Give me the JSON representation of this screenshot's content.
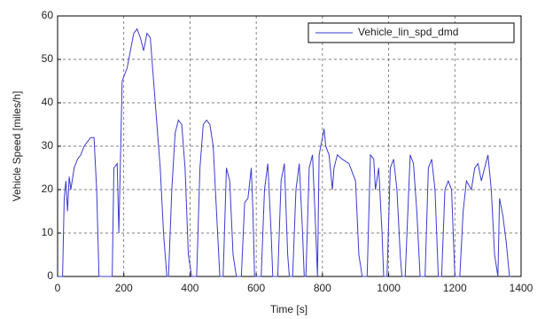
{
  "chart_data": {
    "type": "line",
    "xlabel": "Time [s]",
    "ylabel": "Vehicle Speed [miles/h]",
    "x": [
      0,
      15,
      20,
      25,
      30,
      35,
      40,
      50,
      60,
      70,
      80,
      90,
      100,
      110,
      118,
      125,
      160,
      165,
      170,
      180,
      185,
      195,
      210,
      220,
      230,
      240,
      250,
      260,
      270,
      280,
      290,
      300,
      310,
      320,
      330,
      335,
      345,
      355,
      365,
      375,
      385,
      395,
      405,
      420,
      430,
      440,
      450,
      460,
      470,
      480,
      490,
      500,
      510,
      520,
      530,
      540,
      555,
      565,
      575,
      585,
      590,
      595,
      615,
      625,
      635,
      645,
      650,
      665,
      675,
      685,
      695,
      700,
      710,
      720,
      730,
      740,
      745,
      750,
      760,
      770,
      780,
      785,
      790,
      800,
      805,
      810,
      820,
      830,
      835,
      845,
      860,
      880,
      900,
      910,
      920,
      935,
      945,
      955,
      960,
      970,
      980,
      985,
      995,
      1005,
      1015,
      1025,
      1035,
      1040,
      1050,
      1065,
      1075,
      1085,
      1095,
      1110,
      1120,
      1130,
      1140,
      1150,
      1160,
      1170,
      1180,
      1190,
      1200,
      1215,
      1225,
      1235,
      1250,
      1260,
      1270,
      1280,
      1290,
      1300,
      1310,
      1320,
      1330,
      1335,
      1345,
      1355,
      1365,
      1369
    ],
    "series": [
      {
        "name": "Vehicle_lin_spd_dmd",
        "color": "#3a3ad0",
        "values": [
          0,
          0,
          18,
          22,
          15,
          23,
          20,
          25,
          27,
          28,
          30,
          31,
          32,
          32,
          20,
          0,
          0,
          0,
          25,
          26,
          10,
          45,
          48,
          52,
          56,
          57,
          55,
          52,
          56,
          55,
          45,
          35,
          25,
          10,
          0,
          0,
          20,
          33,
          36,
          35,
          25,
          5,
          0,
          0,
          25,
          35,
          36,
          35,
          30,
          15,
          0,
          0,
          25,
          22,
          5,
          0,
          0,
          17,
          18,
          25,
          15,
          0,
          0,
          20,
          26,
          10,
          0,
          0,
          22,
          26,
          5,
          0,
          0,
          20,
          26,
          10,
          0,
          0,
          25,
          28,
          10,
          0,
          28,
          32,
          34,
          30,
          28,
          20,
          25,
          28,
          27,
          26,
          22,
          5,
          0,
          0,
          28,
          27,
          20,
          25,
          10,
          0,
          0,
          25,
          27,
          20,
          5,
          0,
          0,
          28,
          26,
          15,
          0,
          0,
          25,
          27,
          20,
          0,
          0,
          20,
          22,
          20,
          0,
          0,
          15,
          22,
          20,
          25,
          26,
          22,
          25,
          28,
          20,
          5,
          0,
          18,
          14,
          8,
          0,
          0
        ]
      }
    ],
    "xlim": [
      0,
      1400
    ],
    "xticks": [
      0,
      200,
      400,
      600,
      800,
      1000,
      1200,
      1400
    ],
    "ylim": [
      0,
      60
    ],
    "yticks": [
      0,
      10,
      20,
      30,
      40,
      50,
      60
    ],
    "grid": true,
    "legend": "top-right"
  }
}
